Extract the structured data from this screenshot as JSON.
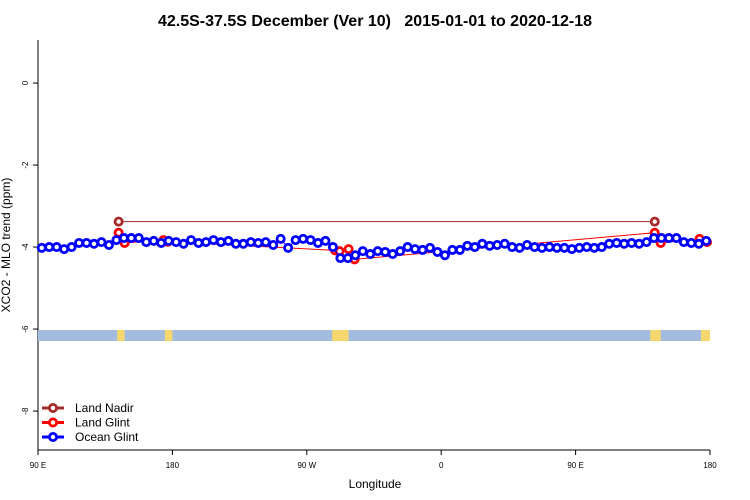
{
  "chart_data": {
    "type": "line",
    "title": "42.5S-37.5S December (Ver 10)   2015-01-01 to 2020-12-18",
    "xlabel": "Longitude",
    "ylabel": "XCO2 - MLO trend (ppm)",
    "xlim": [
      90,
      540
    ],
    "ylim": [
      -8.95,
      1.05
    ],
    "xticks": [
      {
        "value": 90,
        "label": "90 E"
      },
      {
        "value": 180,
        "label": "180"
      },
      {
        "value": 270,
        "label": "90 W"
      },
      {
        "value": 360,
        "label": "0"
      },
      {
        "value": 450,
        "label": "90 E"
      },
      {
        "value": 540,
        "label": "180"
      }
    ],
    "yticks": [
      0,
      -2,
      -4,
      -6,
      -8
    ],
    "legend": "bottom-left",
    "land_segments": [
      [
        143,
        148
      ],
      [
        175,
        180
      ],
      [
        287,
        298
      ],
      [
        500,
        507
      ],
      [
        534,
        540
      ]
    ],
    "series": [
      {
        "name": "Land Nadir",
        "color": "#a52a2a",
        "x": [
          144,
          503
        ],
        "values": [
          -3.38,
          -3.38
        ]
      },
      {
        "name": "Land Glint",
        "color": "#ff0000",
        "x": [
          144,
          148,
          174,
          177,
          289,
          292,
          298,
          302,
          503,
          507,
          533,
          538
        ],
        "values": [
          -3.65,
          -3.9,
          -3.83,
          -3.87,
          -4.08,
          -4.1,
          -4.05,
          -4.3,
          -3.65,
          -3.9,
          -3.8,
          -3.88
        ]
      },
      {
        "name": "Ocean Glint",
        "color": "#0000ff",
        "x": [
          92.5,
          97.5,
          102.5,
          107.5,
          112.5,
          117.5,
          122.5,
          127.5,
          132.5,
          137.5,
          142.5,
          147.5,
          152.5,
          157.5,
          162.5,
          167.5,
          172.5,
          177.5,
          182.5,
          187.5,
          192.5,
          197.5,
          202.5,
          207.5,
          212.5,
          217.5,
          222.5,
          227.5,
          232.5,
          237.5,
          242.5,
          247.5,
          252.5,
          257.5,
          262.5,
          267.5,
          272.5,
          277.5,
          282.5,
          287.5,
          292.5,
          297.5,
          302.5,
          307.5,
          312.5,
          317.5,
          322.5,
          327.5,
          332.5,
          337.5,
          342.5,
          347.5,
          352.5,
          357.5,
          362.5,
          367.5,
          372.5,
          377.5,
          382.5,
          387.5,
          392.5,
          397.5,
          402.5,
          407.5,
          412.5,
          417.5,
          422.5,
          427.5,
          432.5,
          437.5,
          442.5,
          447.5,
          452.5,
          457.5,
          462.5,
          467.5,
          472.5,
          477.5,
          482.5,
          487.5,
          492.5,
          497.5,
          502.5,
          507.5,
          512.5,
          517.5,
          522.5,
          527.5,
          532.5,
          537.5
        ],
        "values": [
          -4.02,
          -4.0,
          -4.0,
          -4.05,
          -4.0,
          -3.9,
          -3.9,
          -3.92,
          -3.88,
          -3.95,
          -3.83,
          -3.78,
          -3.78,
          -3.78,
          -3.88,
          -3.85,
          -3.9,
          -3.85,
          -3.88,
          -3.92,
          -3.83,
          -3.9,
          -3.88,
          -3.83,
          -3.88,
          -3.85,
          -3.92,
          -3.92,
          -3.88,
          -3.9,
          -3.88,
          -3.95,
          -3.8,
          -4.02,
          -3.83,
          -3.8,
          -3.83,
          -3.9,
          -3.85,
          -4.0,
          -4.27,
          -4.27,
          -4.2,
          -4.1,
          -4.17,
          -4.1,
          -4.12,
          -4.17,
          -4.1,
          -4.0,
          -4.05,
          -4.07,
          -4.02,
          -4.12,
          -4.2,
          -4.07,
          -4.07,
          -3.97,
          -4.0,
          -3.92,
          -3.97,
          -3.95,
          -3.92,
          -4.0,
          -4.02,
          -3.95,
          -4.0,
          -4.02,
          -4.0,
          -4.02,
          -4.02,
          -4.05,
          -4.02,
          -4.0,
          -4.02,
          -4.0,
          -3.92,
          -3.9,
          -3.92,
          -3.9,
          -3.92,
          -3.88,
          -3.78,
          -3.78,
          -3.78,
          -3.78,
          -3.88,
          -3.9,
          -3.92,
          -3.85
        ]
      }
    ]
  }
}
